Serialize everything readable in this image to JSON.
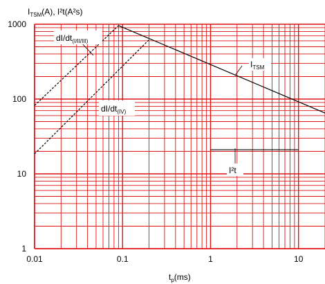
{
  "chart_data": {
    "type": "line",
    "scale": {
      "x": "log",
      "y": "log"
    },
    "xlim": [
      0.01,
      20
    ],
    "ylim": [
      1,
      1000
    ],
    "grid": true,
    "grid_color": "#dd1111",
    "x_ticks": [
      {
        "value": 0.01,
        "label": "0.01"
      },
      {
        "value": 0.1,
        "label": "0.1"
      },
      {
        "value": 1,
        "label": "1"
      },
      {
        "value": 10,
        "label": "10"
      }
    ],
    "y_ticks": [
      {
        "value": 1,
        "label": "1"
      },
      {
        "value": 10,
        "label": "10"
      },
      {
        "value": 100,
        "label": "100"
      },
      {
        "value": 1000,
        "label": "1000"
      }
    ],
    "ylabel": {
      "main": "I",
      "sub": "TSM",
      "rest": "(A), I²t(A²s)"
    },
    "xlabel": {
      "main": "t",
      "sub": "p",
      "rest": "(ms)"
    },
    "series": [
      {
        "id": "itsm",
        "label": {
          "main": "I",
          "sub": "TSM",
          "rest": ""
        },
        "style": "solid",
        "color": "#000000",
        "points": [
          [
            0.09,
            960
          ],
          [
            20,
            65
          ]
        ]
      },
      {
        "id": "i2t",
        "label": {
          "main": "I²t",
          "sub": "",
          "rest": ""
        },
        "style": "solid",
        "color": "#000000",
        "points": [
          [
            1,
            21
          ],
          [
            10,
            21
          ]
        ]
      },
      {
        "id": "didt-1",
        "label": {
          "main": "dI/dt",
          "sub": "(I/II/III)",
          "rest": ""
        },
        "style": "dashed",
        "color": "#000000",
        "points": [
          [
            0.01,
            82
          ],
          [
            0.09,
            960
          ]
        ]
      },
      {
        "id": "didt-2",
        "label": {
          "main": "dI/dt",
          "sub": "(IV)",
          "rest": ""
        },
        "style": "dashed",
        "color": "#000000",
        "points": [
          [
            0.01,
            18.5
          ],
          [
            0.2,
            620
          ]
        ]
      }
    ]
  }
}
